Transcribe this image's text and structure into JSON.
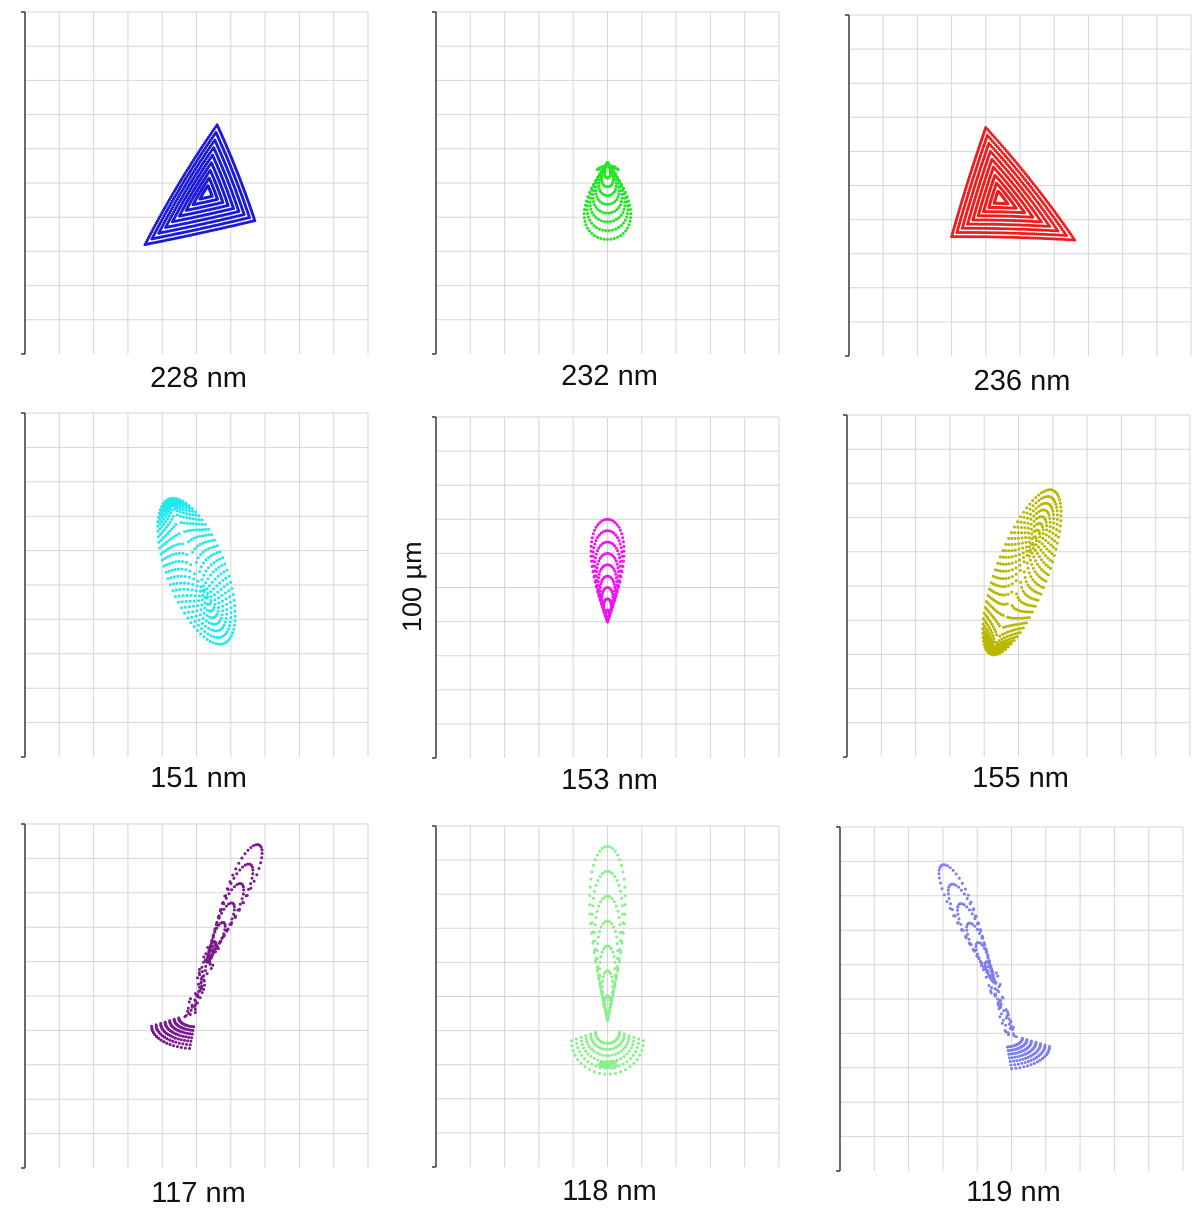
{
  "scale_label": "100 µm",
  "chart_data": [
    {
      "type": "scatter",
      "label": "228 nm",
      "color": "#1a1ad6",
      "shape": "triangle-a"
    },
    {
      "type": "scatter",
      "label": "232 nm",
      "color": "#22e622",
      "shape": "drop-small"
    },
    {
      "type": "scatter",
      "label": "236 nm",
      "color": "#ee1c1c",
      "shape": "triangle-b"
    },
    {
      "type": "scatter",
      "label": "151 nm",
      "color": "#22e8ee",
      "shape": "ellipse-left"
    },
    {
      "type": "scatter",
      "label": "153 nm",
      "color": "#f012f0",
      "shape": "teardrop"
    },
    {
      "type": "scatter",
      "label": "155 nm",
      "color": "#b8b800",
      "shape": "ellipse-right"
    },
    {
      "type": "scatter",
      "label": "117 nm",
      "color": "#7a1a8c",
      "shape": "comet-left"
    },
    {
      "type": "scatter",
      "label": "118 nm",
      "color": "#88f088",
      "shape": "column"
    },
    {
      "type": "scatter",
      "label": "119 nm",
      "color": "#7e7eee",
      "shape": "comet-right"
    }
  ]
}
